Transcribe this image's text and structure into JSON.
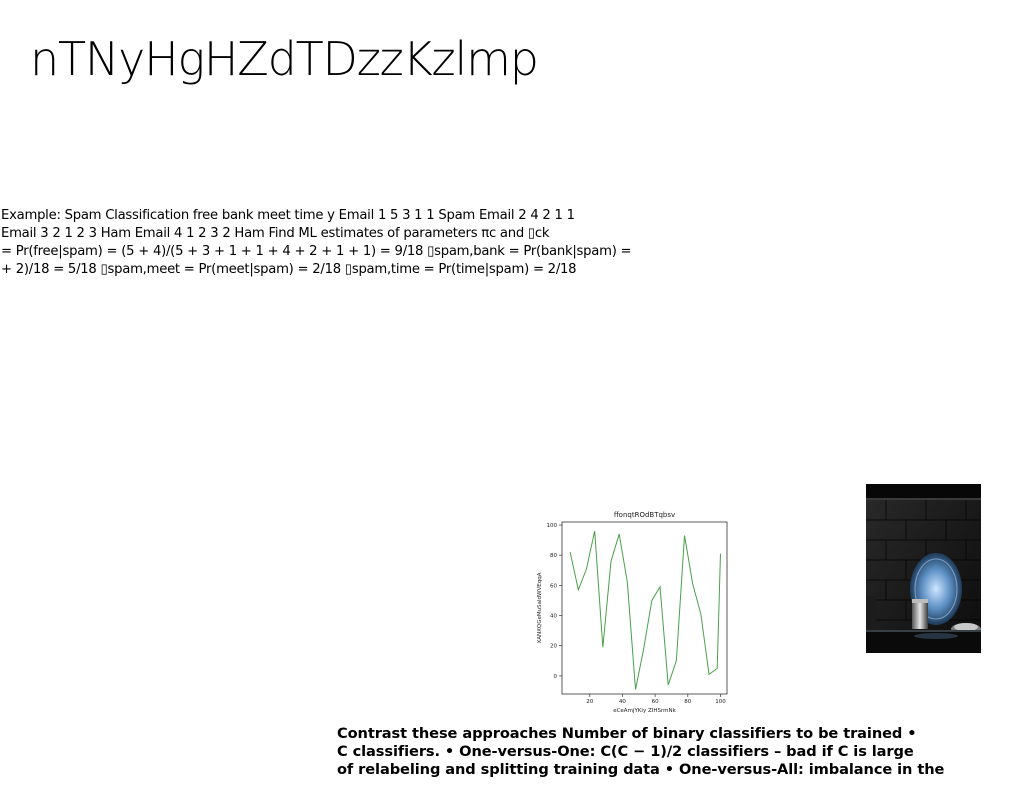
{
  "title": "nTNyHgHZdTDzzKzlmp",
  "example_lines": [
    "Example: Spam Classification free bank meet time y Email 1 5 3 1 1 Spam Email 2 4 2 1 1",
    "Email 3 2 1 2 3 Ham Email 4 1 2 3 2 Ham Find ML estimates of parameters πc and ▯ck",
    "= Pr(free|spam) = (5 + 4)/(5 + 3 + 1 + 1 + 4 + 2 + 1 + 1) = 9/18 ▯spam,bank = Pr(bank|spam) =",
    "+ 2)/18 = 5/18 ▯spam,meet = Pr(meet|spam) = 2/18 ▯spam,time = Pr(time|spam) = 2/18"
  ],
  "contrast_lines": [
    "Contrast these approaches Number of binary classifiers to be trained •",
    "C classifiers. • One-versus-One: C(C − 1)/2 classifiers – bad if C is large",
    "of relabeling and splitting training data • One-versus-All: imbalance in the"
  ],
  "chart_data": {
    "type": "line",
    "title": "ffonqtROdBTqbsv",
    "xlabel": "eCeAmjYKiy ZIHSrmNk",
    "ylabel": "XANXQGeMuSaIdWVEqqA",
    "xlim": [
      3,
      104
    ],
    "ylim": [
      -12,
      102
    ],
    "xticks": [
      20,
      40,
      60,
      80,
      100
    ],
    "yticks": [
      0,
      20,
      40,
      60,
      80,
      100
    ],
    "line_color": "#4aa04a",
    "series": [
      {
        "x": [
          8,
          13,
          18,
          23,
          28,
          33,
          38,
          43,
          48,
          53,
          58,
          63,
          68,
          73,
          78,
          83,
          88,
          93,
          98
        ],
        "values": [
          82,
          57,
          71,
          96,
          19,
          76,
          94,
          62,
          -9,
          18,
          50,
          59,
          -6,
          10,
          93,
          61,
          41,
          1,
          5
        ]
      }
    ],
    "x_extended_last": [
      100,
      81
    ]
  },
  "photo": {
    "description_icon": "kitchen-photo"
  }
}
